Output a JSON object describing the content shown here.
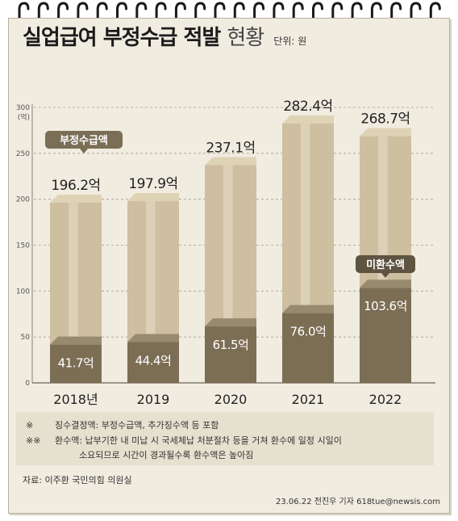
{
  "title": {
    "main": "실업급여 부정수급 적발",
    "sub": "현황",
    "unit": "단위: 원"
  },
  "chart_data": {
    "type": "bar",
    "categories": [
      "2018년",
      "2019",
      "2020",
      "2021",
      "2022"
    ],
    "series": [
      {
        "name": "부정수급액",
        "values": [
          196.2,
          197.9,
          237.1,
          282.4,
          268.7
        ],
        "labels": [
          "196.2억",
          "197.9억",
          "237.1억",
          "282.4억",
          "268.7억"
        ]
      },
      {
        "name": "미환수액",
        "values": [
          41.7,
          44.4,
          61.5,
          76.0,
          103.6
        ],
        "labels": [
          "41.7억",
          "44.4억",
          "61.5억",
          "76.0억",
          "103.6억"
        ]
      }
    ],
    "ylim": [
      0,
      300
    ],
    "yticks": [
      "0",
      "50",
      "100",
      "150",
      "200",
      "250",
      "300"
    ],
    "yunit": "(억)",
    "grid": true,
    "colors": {
      "total": "#cdbf9f",
      "total_top": "#dfd3b6",
      "unrecovered": "#7c6e55",
      "unrecovered_top": "#978a6f",
      "callout": "#7a6e56"
    }
  },
  "notes": [
    {
      "mark": "※",
      "lines": [
        "징수결정액: 부정수급액, 추가징수액 등 포함"
      ]
    },
    {
      "mark": "※※",
      "lines": [
        "환수액: 납부기한 내 미납 시 국세체납 처분절차 등을 거쳐 환수에 일정 시일이",
        "소요되므로 시간이 경과될수록 환수액은 높아짐"
      ]
    }
  ],
  "source": "자료: 이주환 국민의힘 의원실",
  "credit": "23.06.22 전진우 기자 618tue@newsis.com"
}
